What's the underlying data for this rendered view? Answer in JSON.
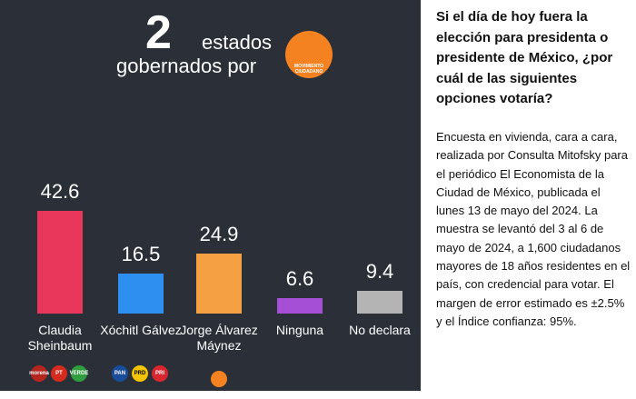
{
  "chart_data": {
    "type": "bar",
    "title_number": "2",
    "title_line1": "estados",
    "title_line2": "gobernados por",
    "logo_text": "MOVIMIENTO CIUDADANO",
    "categories": [
      "Claudia Sheinbaum",
      "Xóchitl Gálvez",
      "Jorge Álvarez Máynez",
      "Ninguna",
      "No declara"
    ],
    "values": [
      42.6,
      16.5,
      24.9,
      6.6,
      9.4
    ],
    "colors": [
      "#e8375a",
      "#2e8ff0",
      "#f5a043",
      "#a44fd6",
      "#b4b4b4"
    ],
    "parties": [
      [
        "morena",
        "PT",
        "VERDE"
      ],
      [
        "PAN",
        "PRD",
        "PRI"
      ],
      [],
      [],
      []
    ]
  },
  "question": "Si el día de hoy fuera la elección para presidenta o presidente de México, ¿por cuál de las siguientes opciones votaría?",
  "description": "Encuesta en vivienda, cara a cara, realizada por Consulta Mitofsky para el periódico El Economista de la Ciudad de México, publicada el lunes 13 de mayo del 2024. La muestra se levantó del 3 al 6 de mayo de 2024, a 1,600 ciudadanos mayores de 18 años residentes en el país, con credencial para votar. El margen de error estimado es ±2.5% y el Índice confianza: 95%."
}
